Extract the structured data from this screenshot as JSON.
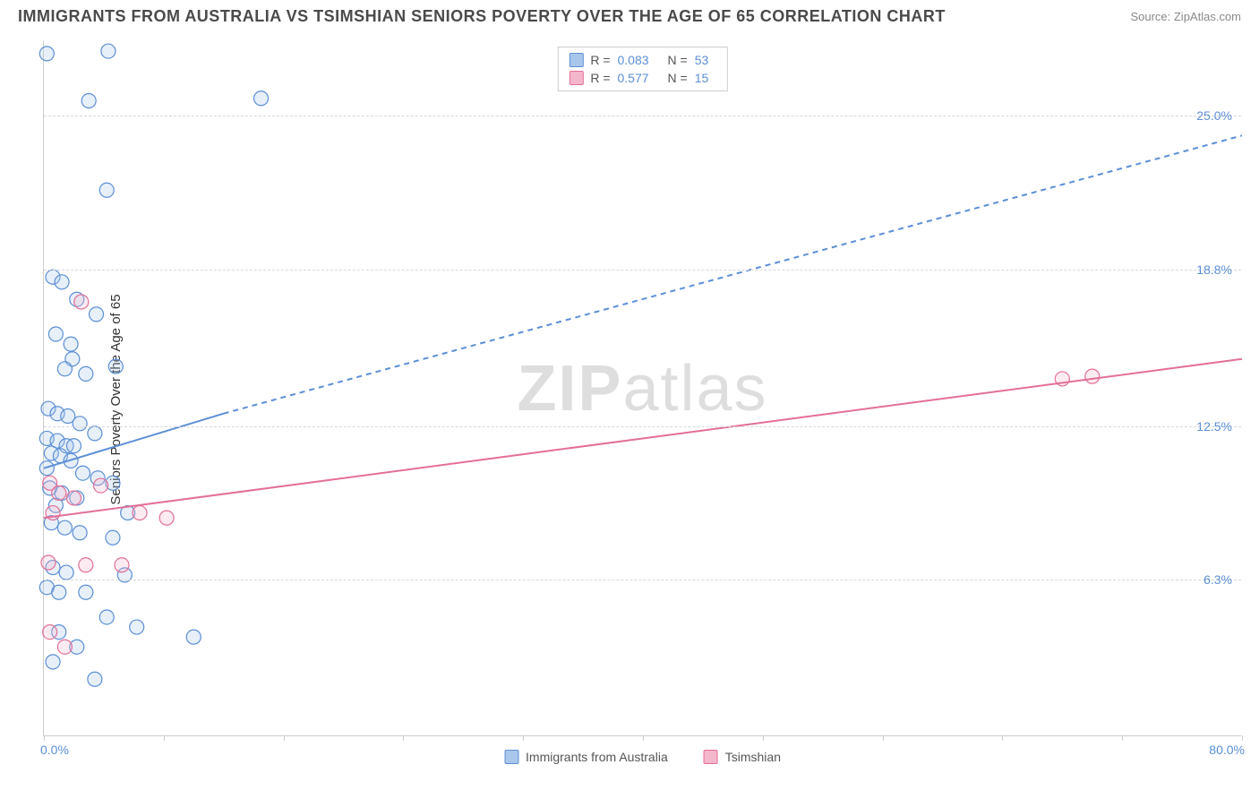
{
  "title": "IMMIGRANTS FROM AUSTRALIA VS TSIMSHIAN SENIORS POVERTY OVER THE AGE OF 65 CORRELATION CHART",
  "source": "Source: ZipAtlas.com",
  "y_axis_label": "Seniors Poverty Over the Age of 65",
  "watermark_a": "ZIP",
  "watermark_b": "atlas",
  "chart": {
    "type": "scatter-with-regression",
    "background_color": "#ffffff",
    "grid_color": "#d8d8d8",
    "axis_color": "#cccccc",
    "tick_label_color": "#5b8fd6",
    "x_range": [
      0.0,
      80.0
    ],
    "y_range": [
      0.0,
      28.0
    ],
    "x_min_label": "0.0%",
    "x_max_label": "80.0%",
    "x_ticks": [
      0,
      8,
      16,
      24,
      32,
      40,
      48,
      56,
      64,
      72,
      80
    ],
    "y_gridlines": [
      {
        "value": 6.3,
        "label": "6.3%"
      },
      {
        "value": 12.5,
        "label": "12.5%"
      },
      {
        "value": 18.8,
        "label": "18.8%"
      },
      {
        "value": 25.0,
        "label": "25.0%"
      }
    ],
    "marker_radius": 8,
    "marker_stroke_width": 1.2,
    "marker_fill_opacity": 0.28,
    "series": [
      {
        "id": "australia",
        "label": "Immigrants from Australia",
        "color_stroke": "#5b8fd6",
        "color_fill": "#a9c7eb",
        "R": "0.083",
        "N": "53",
        "regression": {
          "solid_from": [
            0,
            10.8
          ],
          "solid_to": [
            12,
            13.0
          ],
          "dashed_to": [
            80,
            24.2
          ],
          "line_width": 2,
          "dash": "6 5"
        },
        "points": [
          [
            0.2,
            27.5
          ],
          [
            4.3,
            27.6
          ],
          [
            3.0,
            25.6
          ],
          [
            14.5,
            25.7
          ],
          [
            4.2,
            22.0
          ],
          [
            0.6,
            18.5
          ],
          [
            1.2,
            18.3
          ],
          [
            2.2,
            17.6
          ],
          [
            3.5,
            17.0
          ],
          [
            0.8,
            16.2
          ],
          [
            1.8,
            15.8
          ],
          [
            1.9,
            15.2
          ],
          [
            1.4,
            14.8
          ],
          [
            2.8,
            14.6
          ],
          [
            4.8,
            14.9
          ],
          [
            0.3,
            13.2
          ],
          [
            0.9,
            13.0
          ],
          [
            1.6,
            12.9
          ],
          [
            2.4,
            12.6
          ],
          [
            3.4,
            12.2
          ],
          [
            0.2,
            12.0
          ],
          [
            0.9,
            11.9
          ],
          [
            1.5,
            11.7
          ],
          [
            2.0,
            11.7
          ],
          [
            0.5,
            11.4
          ],
          [
            1.1,
            11.3
          ],
          [
            1.8,
            11.1
          ],
          [
            0.2,
            10.8
          ],
          [
            2.6,
            10.6
          ],
          [
            3.6,
            10.4
          ],
          [
            4.6,
            10.2
          ],
          [
            0.4,
            10.0
          ],
          [
            1.2,
            9.8
          ],
          [
            2.2,
            9.6
          ],
          [
            0.8,
            9.3
          ],
          [
            5.6,
            9.0
          ],
          [
            0.5,
            8.6
          ],
          [
            1.4,
            8.4
          ],
          [
            2.4,
            8.2
          ],
          [
            4.6,
            8.0
          ],
          [
            0.6,
            6.8
          ],
          [
            1.5,
            6.6
          ],
          [
            5.4,
            6.5
          ],
          [
            0.2,
            6.0
          ],
          [
            1.0,
            5.8
          ],
          [
            2.8,
            5.8
          ],
          [
            4.2,
            4.8
          ],
          [
            6.2,
            4.4
          ],
          [
            1.0,
            4.2
          ],
          [
            10.0,
            4.0
          ],
          [
            2.2,
            3.6
          ],
          [
            0.6,
            3.0
          ],
          [
            3.4,
            2.3
          ]
        ]
      },
      {
        "id": "tsimshian",
        "label": "Tsimshian",
        "color_stroke": "#e36f97",
        "color_fill": "#f4b6cb",
        "R": "0.577",
        "N": "15",
        "regression": {
          "solid_from": [
            0,
            8.8
          ],
          "solid_to": [
            80,
            15.2
          ],
          "dashed_to": null,
          "line_width": 2,
          "dash": null
        },
        "points": [
          [
            2.5,
            17.5
          ],
          [
            0.4,
            10.2
          ],
          [
            1.0,
            9.8
          ],
          [
            2.0,
            9.6
          ],
          [
            3.8,
            10.1
          ],
          [
            0.6,
            9.0
          ],
          [
            6.4,
            9.0
          ],
          [
            8.2,
            8.8
          ],
          [
            0.3,
            7.0
          ],
          [
            2.8,
            6.9
          ],
          [
            5.2,
            6.9
          ],
          [
            0.4,
            4.2
          ],
          [
            1.4,
            3.6
          ],
          [
            68.0,
            14.4
          ],
          [
            70.0,
            14.5
          ]
        ]
      }
    ]
  },
  "stats_box": {
    "r_label": "R =",
    "n_label": "N ="
  }
}
